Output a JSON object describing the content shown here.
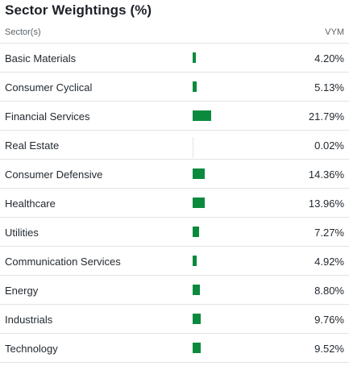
{
  "title": "Sector Weightings (%)",
  "header": {
    "sector_label": "Sector(s)",
    "fund_label": "VYM"
  },
  "colors": {
    "bar": "#0b8a3e",
    "divider": "#e0e4e9",
    "text": "#232a31",
    "muted": "#5b636a"
  },
  "sectors": [
    {
      "name": "Basic Materials",
      "value_text": "4.20%",
      "value": 4.2
    },
    {
      "name": "Consumer Cyclical",
      "value_text": "5.13%",
      "value": 5.13
    },
    {
      "name": "Financial Services",
      "value_text": "21.79%",
      "value": 21.79
    },
    {
      "name": "Real Estate",
      "value_text": "0.02%",
      "value": 0.02
    },
    {
      "name": "Consumer Defensive",
      "value_text": "14.36%",
      "value": 14.36
    },
    {
      "name": "Healthcare",
      "value_text": "13.96%",
      "value": 13.96
    },
    {
      "name": "Utilities",
      "value_text": "7.27%",
      "value": 7.27
    },
    {
      "name": "Communication Services",
      "value_text": "4.92%",
      "value": 4.92
    },
    {
      "name": "Energy",
      "value_text": "8.80%",
      "value": 8.8
    },
    {
      "name": "Industrials",
      "value_text": "9.76%",
      "value": 9.76
    },
    {
      "name": "Technology",
      "value_text": "9.52%",
      "value": 9.52
    }
  ]
}
